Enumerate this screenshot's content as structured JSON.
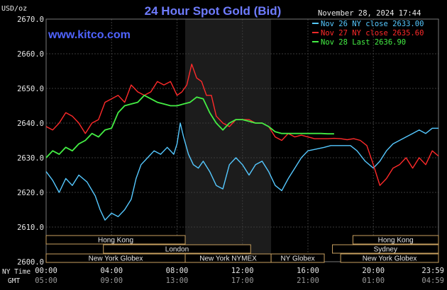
{
  "header": {
    "title": "24 Hour Spot Gold (Bid)",
    "date": "November 28, 2024 17:44",
    "units": "USD/oz",
    "watermark": "www.kitco.com"
  },
  "legend": [
    {
      "label": "Nov 26 NY close 2633.00",
      "color": "#55c8ff"
    },
    {
      "label": "Nov 27 NY close 2635.60",
      "color": "#ff2a2a"
    },
    {
      "label": "Nov 28 Last 2636.90",
      "color": "#44ee44"
    }
  ],
  "sessions": {
    "row1": [
      {
        "label": "Hong Kong",
        "start": 0.0,
        "end": 8.5
      },
      {
        "label": "Hong Kong",
        "start": 18.75,
        "end": 23.98
      }
    ],
    "row2": [
      {
        "label": "London",
        "start": 3.5,
        "end": 12.5
      },
      {
        "label": "Sydney",
        "start": 17.5,
        "end": 23.98
      }
    ],
    "row3": [
      {
        "label": "New York Globex",
        "start": 0.0,
        "end": 8.5
      },
      {
        "label": "New York NYMEX",
        "start": 8.5,
        "end": 13.75
      },
      {
        "label": "NY Globex",
        "start": 13.75,
        "end": 17.0
      },
      {
        "label": "New York Globex",
        "start": 18.0,
        "end": 23.98
      }
    ]
  },
  "axis_labels": {
    "ny_time": "NY Time",
    "gmt": "GMT"
  },
  "chart_data": {
    "type": "line",
    "title": "24 Hour Spot Gold (Bid)",
    "ylabel": "USD/oz",
    "ylim": [
      2600.0,
      2670.0
    ],
    "yticks": [
      "2600.0",
      "2610.0",
      "2620.0",
      "2630.0",
      "2640.0",
      "2650.0",
      "2660.0",
      "2670.0"
    ],
    "xlim": [
      0,
      23.98
    ],
    "xticks": [
      {
        "t": 0,
        "ny": "00:00",
        "gmt": "05:00"
      },
      {
        "t": 4,
        "ny": "04:00",
        "gmt": "09:00"
      },
      {
        "t": 8,
        "ny": "08:00",
        "gmt": "13:00"
      },
      {
        "t": 12,
        "ny": "12:00",
        "gmt": "17:00"
      },
      {
        "t": 16,
        "ny": "16:00",
        "gmt": "21:00"
      },
      {
        "t": 20,
        "ny": "20:00",
        "gmt": "01:00"
      },
      {
        "t": 23.98,
        "ny": "23:59",
        "gmt": "04:59"
      }
    ],
    "shaded_range": [
      8.5,
      13.75
    ],
    "series": [
      {
        "name": "Nov 26 NY close 2633.00",
        "color": "#55c8ff",
        "x": [
          0.0,
          0.4,
          0.8,
          1.2,
          1.6,
          2.0,
          2.5,
          3.0,
          3.3,
          3.6,
          4.0,
          4.4,
          4.8,
          5.2,
          5.5,
          5.8,
          6.2,
          6.6,
          7.0,
          7.4,
          7.8,
          8.0,
          8.2,
          8.4,
          8.7,
          9.0,
          9.3,
          9.6,
          10.0,
          10.4,
          10.8,
          11.2,
          11.6,
          12.0,
          12.4,
          12.8,
          13.2,
          13.6,
          14.0,
          14.4,
          14.8,
          15.2,
          15.6,
          16.0,
          16.5,
          17.0,
          17.4,
          17.8,
          18.2,
          18.6,
          19.0,
          19.5,
          20.0,
          20.4,
          20.8,
          21.2,
          21.6,
          22.0,
          22.4,
          22.8,
          23.2,
          23.6,
          23.98
        ],
        "y": [
          2626.0,
          2623.5,
          2620.0,
          2624.0,
          2622.0,
          2625.0,
          2623.0,
          2619.0,
          2615.0,
          2612.0,
          2614.0,
          2613.0,
          2615.0,
          2618.0,
          2624.0,
          2628.0,
          2630.0,
          2632.0,
          2631.0,
          2633.0,
          2631.0,
          2634.0,
          2640.0,
          2636.0,
          2631.0,
          2628.0,
          2627.0,
          2629.0,
          2626.0,
          2622.0,
          2621.0,
          2628.0,
          2630.0,
          2628.0,
          2625.0,
          2628.0,
          2629.0,
          2626.0,
          2622.0,
          2620.5,
          2624.0,
          2627.0,
          2630.0,
          2632.0,
          2632.5,
          2633.0,
          2633.5,
          2633.5,
          2633.5,
          2633.5,
          2632.0,
          2629.0,
          2627.0,
          2629.0,
          2632.0,
          2634.0,
          2635.0,
          2636.0,
          2637.0,
          2638.0,
          2637.0,
          2638.5,
          2638.5
        ]
      },
      {
        "name": "Nov 27 NY close 2635.60",
        "color": "#ff2a2a",
        "x": [
          0.0,
          0.4,
          0.8,
          1.2,
          1.6,
          2.0,
          2.4,
          2.8,
          3.2,
          3.6,
          4.0,
          4.4,
          4.8,
          5.2,
          5.6,
          6.0,
          6.4,
          6.8,
          7.2,
          7.6,
          8.0,
          8.3,
          8.6,
          8.9,
          9.2,
          9.5,
          9.8,
          10.1,
          10.4,
          10.8,
          11.2,
          11.6,
          12.0,
          12.4,
          12.8,
          13.2,
          13.6,
          14.0,
          14.4,
          14.8,
          15.2,
          15.6,
          16.0,
          16.4,
          16.8,
          17.2,
          17.6,
          18.0,
          18.4,
          18.8,
          19.2,
          19.6,
          20.0,
          20.4,
          20.8,
          21.2,
          21.6,
          22.0,
          22.4,
          22.8,
          23.2,
          23.6,
          23.98
        ],
        "y": [
          2639.0,
          2638.0,
          2640.0,
          2643.0,
          2642.0,
          2640.0,
          2637.0,
          2640.0,
          2641.0,
          2646.0,
          2647.0,
          2648.0,
          2646.0,
          2651.0,
          2649.0,
          2648.0,
          2649.0,
          2652.0,
          2651.0,
          2652.0,
          2648.0,
          2649.0,
          2651.0,
          2657.0,
          2653.0,
          2652.0,
          2648.0,
          2648.0,
          2642.0,
          2640.0,
          2639.0,
          2641.0,
          2641.0,
          2641.0,
          2640.0,
          2640.0,
          2639.0,
          2636.0,
          2635.0,
          2637.0,
          2636.0,
          2636.5,
          2636.0,
          2635.5,
          2635.5,
          2635.5,
          2635.6,
          2635.5,
          2635.2,
          2635.5,
          2635.0,
          2633.5,
          2628.0,
          2622.0,
          2624.0,
          2627.0,
          2628.0,
          2630.0,
          2627.0,
          2630.0,
          2628.0,
          2632.0,
          2630.5
        ]
      },
      {
        "name": "Nov 28 Last 2636.90",
        "color": "#44ee44",
        "x": [
          0.0,
          0.4,
          0.8,
          1.2,
          1.6,
          2.0,
          2.4,
          2.8,
          3.2,
          3.6,
          4.0,
          4.4,
          4.8,
          5.2,
          5.6,
          6.0,
          6.4,
          6.8,
          7.2,
          7.6,
          8.0,
          8.4,
          8.8,
          9.2,
          9.6,
          10.0,
          10.4,
          10.8,
          11.2,
          11.6,
          12.0,
          12.4,
          12.8,
          13.2,
          13.6,
          14.0,
          14.4,
          14.8,
          15.2,
          15.6,
          16.0,
          16.4,
          16.8,
          17.2,
          17.6
        ],
        "y": [
          2630.0,
          2632.0,
          2631.0,
          2633.0,
          2632.0,
          2634.0,
          2635.0,
          2637.0,
          2636.0,
          2638.0,
          2638.5,
          2643.0,
          2645.0,
          2645.5,
          2646.0,
          2648.0,
          2647.0,
          2646.0,
          2645.5,
          2645.0,
          2645.0,
          2645.5,
          2646.0,
          2647.5,
          2647.0,
          2643.0,
          2640.0,
          2638.0,
          2640.0,
          2641.0,
          2641.0,
          2640.5,
          2640.0,
          2640.0,
          2639.0,
          2637.5,
          2637.0,
          2637.0,
          2637.0,
          2637.0,
          2637.0,
          2637.0,
          2637.0,
          2636.9,
          2636.9
        ]
      }
    ]
  }
}
